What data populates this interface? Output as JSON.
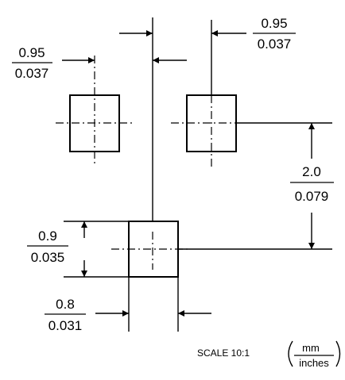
{
  "dimensions": {
    "top_pitch": {
      "mm": "0.95",
      "inches": "0.037"
    },
    "right_pitch": {
      "mm": "0.95",
      "inches": "0.037"
    },
    "vertical_pitch": {
      "mm": "2.0",
      "inches": "0.079"
    },
    "pad_height": {
      "mm": "0.9",
      "inches": "0.035"
    },
    "pad_width": {
      "mm": "0.8",
      "inches": "0.031"
    }
  },
  "scale": {
    "label": "SCALE 10:1",
    "unit_top": "mm",
    "unit_bottom": "inches"
  }
}
